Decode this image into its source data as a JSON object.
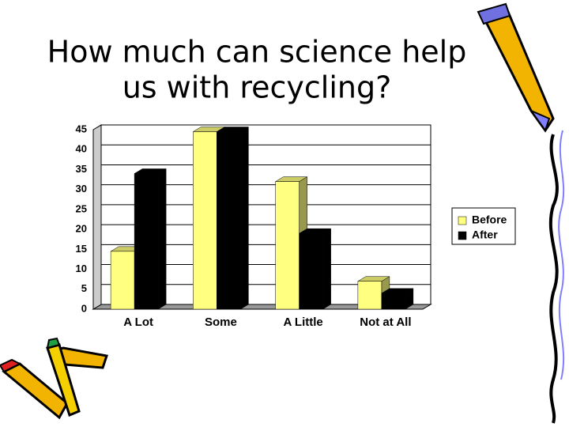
{
  "chart_data": {
    "type": "bar3d",
    "title": [
      "How much can science help",
      "us with recycling?"
    ],
    "categories": [
      "A Lot",
      "Some",
      "A Little",
      "Not at All"
    ],
    "series": [
      {
        "name": "Before",
        "color": "#ffff80",
        "values": [
          14.5,
          44.5,
          32,
          7
        ]
      },
      {
        "name": "After",
        "color": "#000000",
        "values": [
          34,
          44.5,
          19,
          4
        ]
      }
    ],
    "ylim": [
      0,
      45
    ],
    "yticks": [
      0,
      5,
      10,
      15,
      20,
      25,
      30,
      35,
      40,
      45
    ],
    "grid": true,
    "legend": "right"
  }
}
